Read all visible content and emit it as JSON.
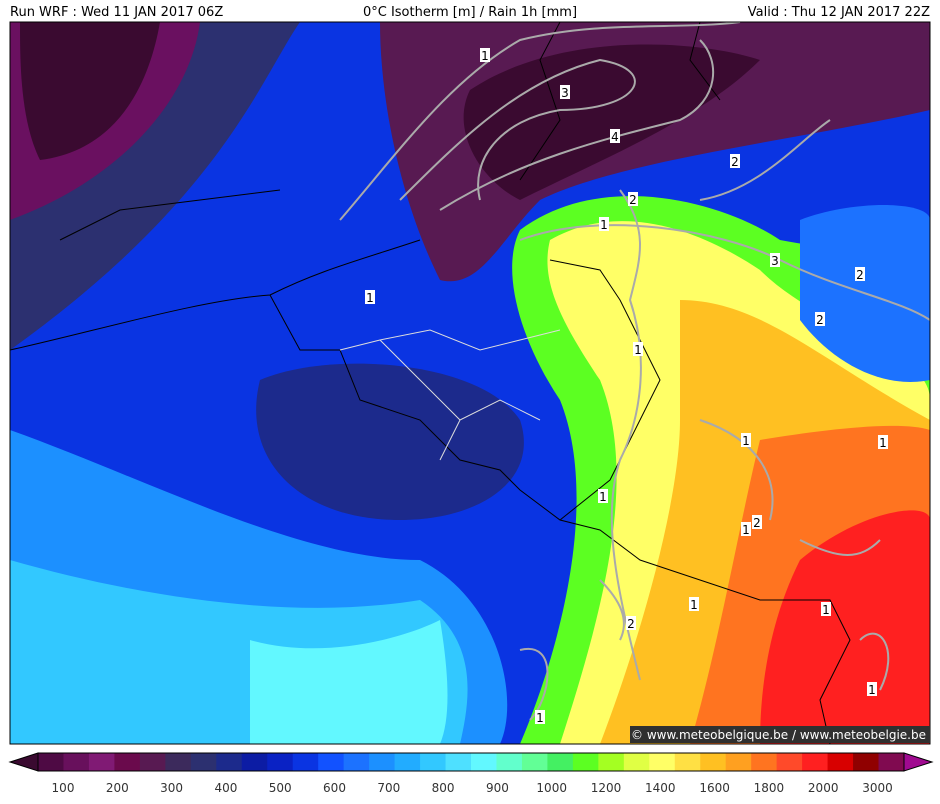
{
  "header": {
    "run": "Run WRF : Wed 11 JAN 2017 06Z",
    "title": "0°C Isotherm [m] / Rain 1h [mm]",
    "valid": "Valid : Thu 12 JAN 2017 22Z"
  },
  "contour_labels": [
    "1",
    "3",
    "4",
    "2",
    "2",
    "1",
    "3",
    "2",
    "2",
    "1",
    "1",
    "1",
    "1",
    "1",
    "1",
    "2",
    "2",
    "1",
    "1",
    "1",
    "1"
  ],
  "watermark": "© www.meteobelgique.be / www.meteobelgie.be",
  "colorbar": {
    "colors": [
      "#3a0a30",
      "#4e0a44",
      "#68105c",
      "#801a74",
      "#6a0a4c",
      "#581a52",
      "#3c2a5c",
      "#2c3070",
      "#1c2a8c",
      "#0c1ca4",
      "#0a22c4",
      "#0a34e2",
      "#1252ff",
      "#1c72ff",
      "#1c90ff",
      "#22acff",
      "#32c8ff",
      "#4ee0ff",
      "#62f8ff",
      "#62ffcc",
      "#62ff96",
      "#44f062",
      "#5cff22",
      "#a4ff22",
      "#e0ff44",
      "#ffff66",
      "#ffe044",
      "#ffc022",
      "#ffa020",
      "#ff7420",
      "#ff4a2a",
      "#ff2020",
      "#d80000",
      "#900000",
      "#800a50",
      "#a00a90"
    ],
    "labels": [
      100,
      200,
      300,
      400,
      500,
      600,
      700,
      800,
      900,
      1000,
      1200,
      1400,
      1600,
      1800,
      2000,
      3000
    ]
  }
}
